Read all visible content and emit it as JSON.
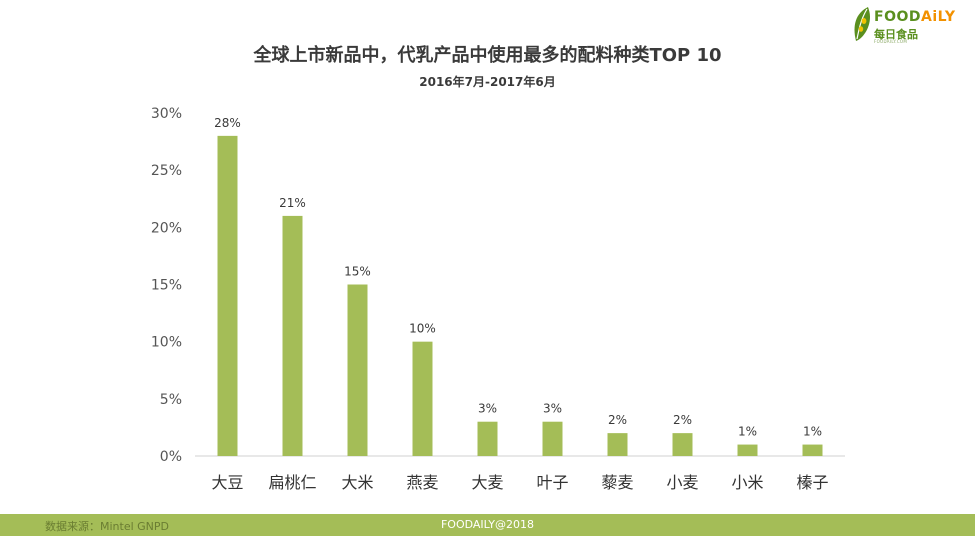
{
  "logo": {
    "brand_a": "FOOD",
    "brand_b": "AiLY",
    "brand_cn": "每日食品",
    "tagline": "FOODAILY.COM"
  },
  "chart_data": {
    "type": "bar",
    "title": "全球上市新品中，代乳产品中使用最多的配料种类TOP 10",
    "subtitle": "2016年7月-2017年6月",
    "categories": [
      "大豆",
      "扁桃仁",
      "大米",
      "燕麦",
      "大麦",
      "叶子",
      "藜麦",
      "小麦",
      "小米",
      "榛子"
    ],
    "values": [
      28,
      21,
      15,
      10,
      3,
      3,
      2,
      2,
      1,
      1
    ],
    "data_labels": [
      "28%",
      "21%",
      "15%",
      "10%",
      "3%",
      "3%",
      "2%",
      "2%",
      "1%",
      "1%"
    ],
    "ylim": [
      0,
      30
    ],
    "yticks": [
      0,
      5,
      10,
      15,
      20,
      25,
      30
    ],
    "ytick_labels": [
      "0%",
      "5%",
      "10%",
      "15%",
      "20%",
      "25%",
      "30%"
    ],
    "xlabel": "",
    "ylabel": "",
    "grid": false,
    "bar_color": "#a4bd57"
  },
  "footer": {
    "source": "数据来源：Mintel GNPD",
    "copyright": "FOODAILY@2018",
    "bar_color": "#a4bd57"
  }
}
